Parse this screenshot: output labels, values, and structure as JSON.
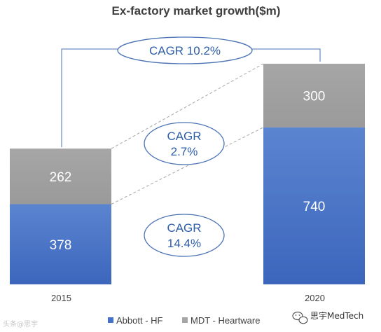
{
  "chart_data": {
    "type": "bar",
    "stacked": true,
    "title": "Ex-factory market growth($m)",
    "categories": [
      "2015",
      "2020"
    ],
    "series": [
      {
        "name": "Abbott - HF",
        "values": [
          378,
          740
        ],
        "color": "#4472c4"
      },
      {
        "name": "MDT - Heartware",
        "values": [
          262,
          300
        ],
        "color": "#a5a5a5"
      }
    ],
    "annotations": [
      {
        "id": "total",
        "lines": [
          "CAGR 10.2%"
        ]
      },
      {
        "id": "mdt",
        "lines": [
          "CAGR",
          "2.7%"
        ]
      },
      {
        "id": "abbott",
        "lines": [
          "CAGR",
          "14.4%"
        ]
      }
    ],
    "legend_position": "bottom-right",
    "grid": false
  },
  "watermarks": {
    "left": "头条@思宇",
    "right": "思宇MedTech"
  },
  "icons": {
    "watermark_right": "wechat-icon"
  }
}
